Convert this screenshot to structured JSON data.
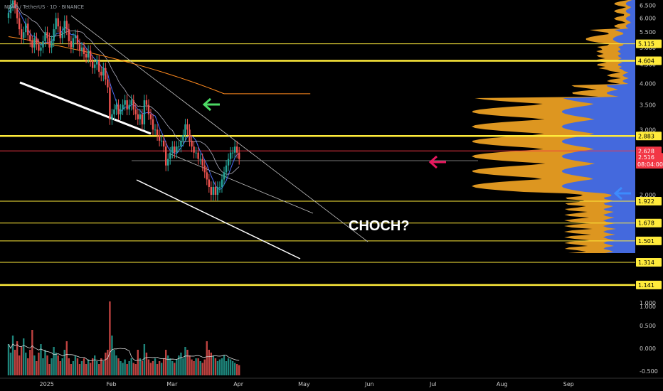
{
  "header": {
    "symbol_line": "NEAR / TetherUS · 1D · BINANCE"
  },
  "chart_data": {
    "type": "candlestick",
    "title": "NEAR / TetherUS · 1D · BINANCE",
    "y_scale": "log",
    "ylim": [
      0.96,
      6.6
    ],
    "price_ticks": [
      "6.500",
      "6.000",
      "5.500",
      "5.000",
      "4.500",
      "4.000",
      "3.500",
      "3.000",
      "2.500",
      "2.000",
      "1.000"
    ],
    "price_tick_values": [
      6.5,
      6.0,
      5.5,
      5.0,
      4.5,
      4.0,
      3.5,
      3.0,
      2.5,
      2.0,
      1.0
    ],
    "volume_ticks": [
      "1.000",
      "0.500",
      "0.000",
      "-0.500"
    ],
    "volume_tick_values": [
      1.0,
      0.5,
      0.0,
      -0.5
    ],
    "x_ticks": [
      "2025",
      "Feb",
      "Mar",
      "Apr",
      "May",
      "Jun",
      "Jul",
      "Aug",
      "Sep"
    ],
    "x_tick_days": [
      0,
      31,
      59,
      90,
      120,
      151,
      181,
      212,
      243
    ],
    "x_start_date": "2024-12-15",
    "close_series": [
      6.2,
      6.5,
      6.7,
      6.4,
      6.0,
      5.6,
      5.3,
      5.5,
      5.8,
      5.4,
      5.2,
      5.0,
      5.3,
      5.1,
      4.9,
      5.0,
      5.2,
      5.5,
      5.3,
      5.0,
      5.2,
      5.6,
      6.0,
      5.7,
      5.3,
      5.5,
      5.9,
      5.6,
      5.2,
      5.0,
      5.3,
      5.4,
      5.1,
      4.9,
      5.0,
      4.8,
      4.7,
      4.9,
      4.6,
      4.4,
      4.5,
      4.6,
      4.3,
      4.2,
      4.4,
      4.1,
      3.9,
      3.2,
      3.3,
      3.4,
      3.5,
      3.3,
      3.4,
      3.5,
      3.6,
      3.4,
      3.5,
      3.6,
      3.4,
      3.3,
      3.2,
      3.3,
      3.1,
      3.6,
      3.5,
      3.3,
      3.2,
      3.0,
      3.0,
      2.9,
      2.8,
      2.8,
      2.7,
      2.4,
      2.5,
      2.6,
      2.7,
      2.6,
      2.7,
      2.7,
      2.8,
      2.9,
      3.1,
      3.0,
      2.8,
      2.7,
      2.6,
      2.6,
      2.5,
      2.5,
      2.4,
      2.3,
      2.2,
      2.1,
      2.0,
      2.1,
      2.0,
      2.1,
      2.1,
      2.2,
      2.3,
      2.4,
      2.5,
      2.6,
      2.6,
      2.7,
      2.6,
      2.5
    ],
    "volume_series": [
      0.55,
      0.4,
      0.7,
      0.45,
      0.6,
      0.35,
      0.5,
      0.65,
      0.4,
      0.3,
      0.45,
      0.8,
      0.35,
      0.25,
      0.4,
      0.55,
      0.3,
      0.45,
      0.35,
      0.2,
      0.3,
      0.5,
      0.4,
      0.35,
      0.25,
      0.3,
      0.45,
      0.6,
      0.3,
      0.2,
      0.25,
      0.35,
      0.3,
      0.2,
      0.25,
      0.3,
      0.2,
      0.28,
      0.22,
      0.3,
      0.35,
      0.25,
      0.2,
      0.3,
      0.25,
      0.4,
      0.45,
      1.3,
      0.7,
      0.45,
      0.35,
      0.3,
      0.25,
      0.22,
      0.28,
      0.2,
      0.25,
      0.3,
      0.22,
      0.2,
      0.45,
      0.3,
      0.25,
      0.55,
      0.4,
      0.28,
      0.22,
      0.25,
      0.3,
      0.2,
      0.25,
      0.22,
      0.3,
      0.45,
      0.35,
      0.3,
      0.25,
      0.22,
      0.28,
      0.35,
      0.4,
      0.3,
      0.5,
      0.45,
      0.35,
      0.28,
      0.25,
      0.3,
      0.3,
      0.25,
      0.22,
      0.28,
      0.6,
      0.45,
      0.4,
      0.35,
      0.3,
      0.25,
      0.28,
      0.3,
      0.35,
      0.25,
      0.3,
      0.28,
      0.25,
      0.22,
      0.2,
      0.18
    ],
    "horizontal_levels": [
      {
        "label": "5.115",
        "value": 5.115,
        "style": "thin-yellow"
      },
      {
        "label": "4.604",
        "value": 4.604,
        "style": "thick-yellow"
      },
      {
        "label": "2.883",
        "value": 2.883,
        "style": "thick-yellow"
      },
      {
        "label": "2.628",
        "value": 2.628,
        "style": "red"
      },
      {
        "label": "1.922",
        "value": 1.922,
        "style": "thin-yellow"
      },
      {
        "label": "1.678",
        "value": 1.678,
        "style": "thin-yellow"
      },
      {
        "label": "1.501",
        "value": 1.501,
        "style": "thin-yellow"
      },
      {
        "label": "1.314",
        "value": 1.314,
        "style": "thin-yellow"
      },
      {
        "label": "1.141",
        "value": 1.141,
        "style": "thick-yellow"
      }
    ],
    "current_price": {
      "label": "2.516",
      "countdown": "08:04:00",
      "value": 2.516
    },
    "annotations": [
      {
        "text": "CHOCH?"
      }
    ],
    "colors": {
      "up": "#26a69a",
      "down": "#ef5350",
      "level": "#ffeb3b",
      "red_level": "#f23645",
      "profile_orange": "#f5a623",
      "profile_blue": "#2962ff",
      "ema_orange": "#ff8a1e",
      "ema_blue": "#4a6cf7"
    }
  }
}
